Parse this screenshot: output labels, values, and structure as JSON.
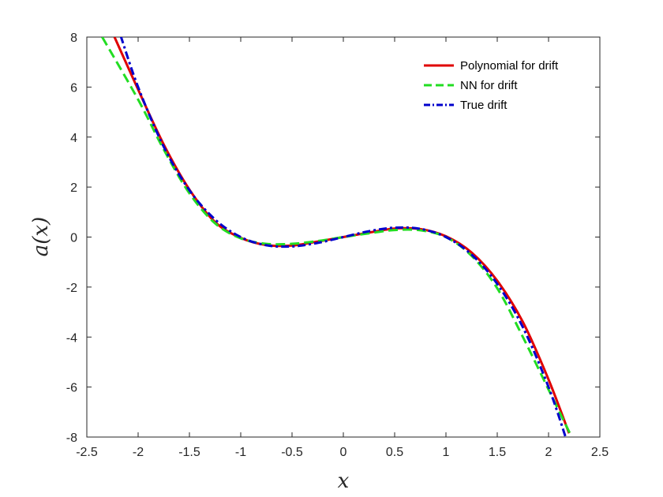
{
  "chart_data": {
    "type": "line",
    "title": "",
    "xlabel": "x",
    "ylabel": "a(x)",
    "xlim": [
      -2.5,
      2.5
    ],
    "ylim": [
      -8,
      8
    ],
    "xticks": [
      -2.5,
      -2,
      -1.5,
      -1,
      -0.5,
      0,
      0.5,
      1,
      1.5,
      2,
      2.5
    ],
    "yticks": [
      -8,
      -6,
      -4,
      -2,
      0,
      2,
      4,
      6,
      8
    ],
    "xtick_labels": [
      "-2.5",
      "-2",
      "-1.5",
      "-1",
      "-0.5",
      "0",
      "0.5",
      "1",
      "1.5",
      "2",
      "2.5"
    ],
    "ytick_labels": [
      "-8",
      "-6",
      "-4",
      "-2",
      "0",
      "2",
      "4",
      "6",
      "8"
    ],
    "grid": false,
    "legend_position": "top-right",
    "series": [
      {
        "name": "Polynomial for drift",
        "color": "#e00000",
        "dash": "solid",
        "x": [
          -2.23,
          -2.0,
          -1.75,
          -1.5,
          -1.25,
          -1.0,
          -0.75,
          -0.5,
          -0.25,
          0.0,
          0.25,
          0.5,
          0.75,
          1.0,
          1.25,
          1.5,
          1.75,
          2.0,
          2.2
        ],
        "y": [
          8.0,
          5.9,
          3.7,
          1.9,
          0.6,
          -0.03,
          -0.32,
          -0.34,
          -0.18,
          0.0,
          0.18,
          0.34,
          0.32,
          0.03,
          -0.62,
          -1.75,
          -3.4,
          -5.7,
          -7.85
        ]
      },
      {
        "name": "NN for drift",
        "color": "#22dd22",
        "dash": "dashed",
        "x": [
          -2.35,
          -2.0,
          -1.75,
          -1.5,
          -1.25,
          -1.0,
          -0.75,
          -0.5,
          -0.25,
          0.0,
          0.25,
          0.5,
          0.75,
          1.0,
          1.25,
          1.5,
          1.75,
          2.0,
          2.22
        ],
        "y": [
          8.0,
          5.5,
          3.5,
          1.75,
          0.55,
          -0.05,
          -0.27,
          -0.27,
          -0.16,
          0.0,
          0.15,
          0.28,
          0.27,
          0.0,
          -0.75,
          -2.05,
          -4.0,
          -6.1,
          -7.95
        ]
      },
      {
        "name": "True drift",
        "color": "#0000cc",
        "dash": "dashdot",
        "x": [
          -2.17,
          -2.0,
          -1.75,
          -1.5,
          -1.25,
          -1.0,
          -0.75,
          -0.5,
          -0.25,
          0.0,
          0.25,
          0.5,
          0.75,
          1.0,
          1.25,
          1.5,
          1.75,
          2.0,
          2.17
        ],
        "y": [
          8.05,
          6.0,
          3.61,
          1.875,
          0.703,
          0.0,
          -0.328,
          -0.375,
          -0.234,
          0.0,
          0.234,
          0.375,
          0.328,
          0.0,
          -0.703,
          -1.875,
          -3.61,
          -6.0,
          -8.05
        ]
      }
    ]
  }
}
